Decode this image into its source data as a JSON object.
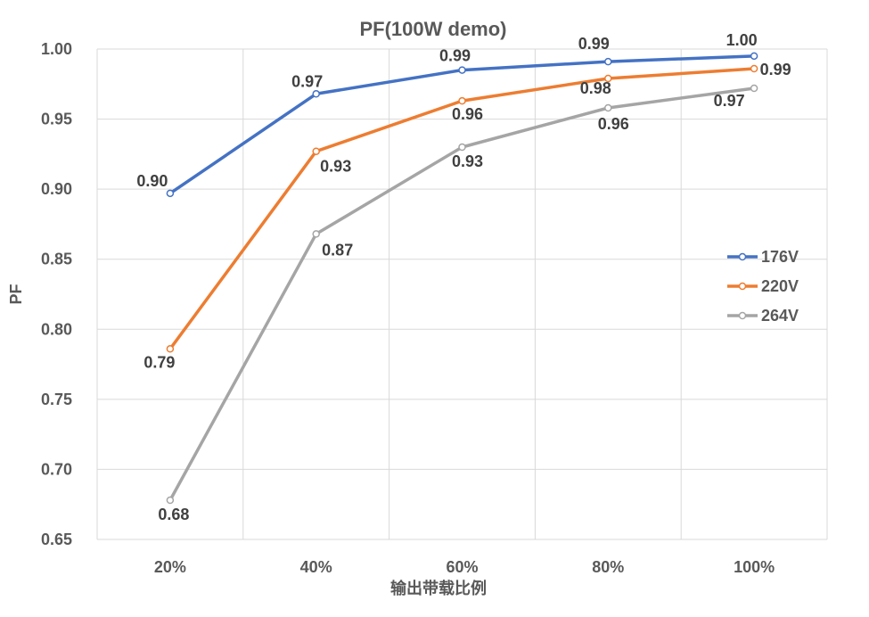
{
  "chart_data": {
    "type": "line",
    "title": "PF(100W demo)",
    "xlabel": "输出带载比例",
    "ylabel": "PF",
    "categories": [
      "20%",
      "40%",
      "60%",
      "80%",
      "100%"
    ],
    "ylim": [
      0.65,
      1.0
    ],
    "yticks": [
      "0.65",
      "0.70",
      "0.75",
      "0.80",
      "0.85",
      "0.90",
      "0.95",
      "1.00"
    ],
    "grid": true,
    "legend_position": "right",
    "series": [
      {
        "name": "176V",
        "color": "#4472C4",
        "values": [
          0.897,
          0.968,
          0.985,
          0.991,
          0.995
        ],
        "labels": [
          "0.90",
          "0.97",
          "0.99",
          "0.99",
          "1.00"
        ]
      },
      {
        "name": "220V",
        "color": "#ED7D31",
        "values": [
          0.786,
          0.927,
          0.963,
          0.979,
          0.986
        ],
        "labels": [
          "0.79",
          "0.93",
          "0.96",
          "0.98",
          "0.99"
        ]
      },
      {
        "name": "264V",
        "color": "#A5A5A5",
        "values": [
          0.678,
          0.868,
          0.93,
          0.958,
          0.972
        ],
        "labels": [
          "0.68",
          "0.87",
          "0.93",
          "0.96",
          "0.97"
        ]
      }
    ]
  }
}
